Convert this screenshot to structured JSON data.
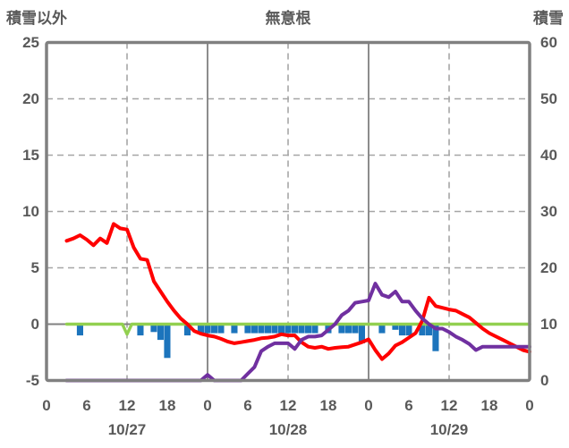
{
  "header": {
    "left_axis_title": "積雪以外",
    "chart_title": "無意根",
    "right_axis_title": "積雪"
  },
  "chart_data": {
    "type": "line+bar",
    "title": "無意根",
    "left_axis": {
      "label": "積雪以外",
      "ticks": [
        25,
        20,
        15,
        10,
        5,
        0,
        -5
      ],
      "range": [
        -5,
        25
      ],
      "gridline_values": [
        20,
        15,
        10,
        5
      ]
    },
    "right_axis": {
      "label": "積雪",
      "ticks": [
        60,
        50,
        40,
        30,
        20,
        10,
        0
      ],
      "range": [
        0,
        60
      ]
    },
    "x_axis": {
      "range_hours": [
        0,
        72
      ],
      "hour_tick_hours": [
        0,
        6,
        12,
        18,
        24,
        30,
        36,
        42,
        48,
        54,
        60,
        66,
        72
      ],
      "hour_tick_labels": [
        "0",
        "6",
        "12",
        "18",
        "0",
        "6",
        "12",
        "18",
        "0",
        "6",
        "12",
        "18",
        "0"
      ],
      "date_labels": [
        "10/27",
        "10/28",
        "10/29"
      ],
      "date_center_hours": [
        12,
        36,
        60
      ],
      "solid_gridline_hours": [
        24,
        48
      ],
      "dashed_gridline_hours": [
        12,
        36,
        60
      ]
    },
    "colors": {
      "temperature_line": "#ff0000",
      "snow_depth_line": "#7030a0",
      "precip_bars": "#1c74bc",
      "zero_baseline": "#92d050",
      "axis_frame": "#808080",
      "gridline": "#a6a6a6",
      "text": "#595959"
    },
    "series": [
      {
        "name": "temperature-red-line",
        "axis": "left",
        "kind": "line",
        "points": [
          [
            3,
            7.4
          ],
          [
            4,
            7.6
          ],
          [
            5,
            7.9
          ],
          [
            6,
            7.5
          ],
          [
            7,
            7.0
          ],
          [
            8,
            7.6
          ],
          [
            9,
            7.2
          ],
          [
            10,
            8.9
          ],
          [
            11,
            8.5
          ],
          [
            12,
            8.4
          ],
          [
            13,
            6.8
          ],
          [
            14,
            5.8
          ],
          [
            15,
            5.7
          ],
          [
            16,
            3.8
          ],
          [
            17,
            2.9
          ],
          [
            18,
            2.0
          ],
          [
            19,
            1.2
          ],
          [
            20,
            0.5
          ],
          [
            21,
            0.0
          ],
          [
            22,
            -0.6
          ],
          [
            23,
            -0.85
          ],
          [
            24,
            -1.0
          ],
          [
            25,
            -1.1
          ],
          [
            26,
            -1.3
          ],
          [
            27,
            -1.55
          ],
          [
            28,
            -1.7
          ],
          [
            29,
            -1.6
          ],
          [
            30,
            -1.5
          ],
          [
            31,
            -1.4
          ],
          [
            32,
            -1.25
          ],
          [
            33,
            -1.2
          ],
          [
            34,
            -1.1
          ],
          [
            35,
            -0.9
          ],
          [
            36,
            -1.0
          ],
          [
            37,
            -1.0
          ],
          [
            38,
            -1.6
          ],
          [
            39,
            -2.0
          ],
          [
            40,
            -2.1
          ],
          [
            41,
            -2.0
          ],
          [
            42,
            -2.2
          ],
          [
            43,
            -2.1
          ],
          [
            44,
            -2.05
          ],
          [
            45,
            -2.0
          ],
          [
            46,
            -1.8
          ],
          [
            47,
            -1.6
          ],
          [
            48,
            -1.35
          ],
          [
            49,
            -2.3
          ],
          [
            50,
            -3.1
          ],
          [
            51,
            -2.6
          ],
          [
            52,
            -1.9
          ],
          [
            53,
            -1.6
          ],
          [
            54,
            -1.2
          ],
          [
            55,
            -0.8
          ],
          [
            56,
            0.3
          ],
          [
            57,
            2.35
          ],
          [
            58,
            1.6
          ],
          [
            59,
            1.45
          ],
          [
            60,
            1.3
          ],
          [
            61,
            1.2
          ],
          [
            62,
            0.9
          ],
          [
            63,
            0.6
          ],
          [
            64,
            0.1
          ],
          [
            65,
            -0.4
          ],
          [
            66,
            -0.8
          ],
          [
            67,
            -1.1
          ],
          [
            68,
            -1.4
          ],
          [
            69,
            -1.7
          ],
          [
            70,
            -2.0
          ],
          [
            71,
            -2.3
          ],
          [
            72,
            -2.45
          ]
        ]
      },
      {
        "name": "snow-depth-purple-line",
        "axis": "right",
        "kind": "line",
        "points": [
          [
            3,
            0
          ],
          [
            23,
            0
          ],
          [
            24,
            1
          ],
          [
            25,
            0
          ],
          [
            29,
            0
          ],
          [
            30,
            1.2
          ],
          [
            31,
            2.4
          ],
          [
            32,
            5.2
          ],
          [
            33,
            6.0
          ],
          [
            34,
            6.6
          ],
          [
            35,
            6.6
          ],
          [
            36,
            6.6
          ],
          [
            37,
            5.6
          ],
          [
            38,
            7.2
          ],
          [
            39,
            7.8
          ],
          [
            40,
            7.8
          ],
          [
            41,
            8.0
          ],
          [
            42,
            9.0
          ],
          [
            43,
            10.0
          ],
          [
            44,
            11.6
          ],
          [
            45,
            12.4
          ],
          [
            46,
            13.8
          ],
          [
            47,
            14.0
          ],
          [
            48,
            14.2
          ],
          [
            49,
            17.2
          ],
          [
            50,
            15.2
          ],
          [
            51,
            14.8
          ],
          [
            52,
            15.8
          ],
          [
            53,
            14.0
          ],
          [
            54,
            14.0
          ],
          [
            55,
            12.4
          ],
          [
            56,
            11.0
          ],
          [
            57,
            10.0
          ],
          [
            58,
            9.2
          ],
          [
            59,
            9.2
          ],
          [
            60,
            8.6
          ],
          [
            61,
            7.8
          ],
          [
            62,
            7.2
          ],
          [
            63,
            6.5
          ],
          [
            64,
            5.4
          ],
          [
            65,
            6.0
          ],
          [
            72,
            6.0
          ]
        ]
      },
      {
        "name": "zero-baseline-green-line",
        "axis": "left",
        "kind": "line",
        "points": [
          [
            3,
            0
          ],
          [
            11.3,
            0
          ],
          [
            12,
            -0.9
          ],
          [
            12.7,
            0
          ],
          [
            72,
            0
          ]
        ]
      },
      {
        "name": "precip-bars-blue",
        "axis": "left",
        "kind": "bar",
        "bar_width_hours": 0.95,
        "points": [
          [
            5,
            -1.0
          ],
          [
            14,
            -1.0
          ],
          [
            16,
            -0.7
          ],
          [
            17,
            -1.4
          ],
          [
            18,
            -3.0
          ],
          [
            21,
            -1.0
          ],
          [
            23,
            -0.9
          ],
          [
            24,
            -0.8
          ],
          [
            25,
            -0.8
          ],
          [
            26,
            -0.8
          ],
          [
            28,
            -0.8
          ],
          [
            30,
            -0.8
          ],
          [
            31,
            -0.8
          ],
          [
            32,
            -0.8
          ],
          [
            33,
            -0.8
          ],
          [
            34,
            -0.8
          ],
          [
            35,
            -0.8
          ],
          [
            36,
            -0.8
          ],
          [
            37,
            -0.8
          ],
          [
            38,
            -0.8
          ],
          [
            39,
            -0.8
          ],
          [
            40,
            -0.8
          ],
          [
            42,
            -0.8
          ],
          [
            44,
            -0.8
          ],
          [
            45,
            -0.8
          ],
          [
            46,
            -0.8
          ],
          [
            47,
            -1.7
          ],
          [
            50,
            -0.8
          ],
          [
            52,
            -0.5
          ],
          [
            53,
            -1.0
          ],
          [
            54,
            -1.0
          ],
          [
            56,
            -1.0
          ],
          [
            57,
            -1.0
          ],
          [
            58,
            -2.4
          ]
        ]
      }
    ]
  }
}
